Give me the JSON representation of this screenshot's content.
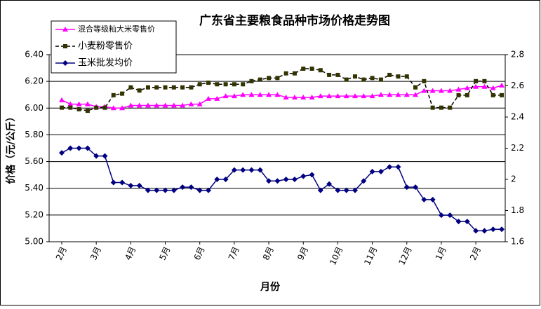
{
  "chart_data": {
    "type": "line",
    "title": "广东省主要粮食品种市场价格走势图",
    "xlabel": "月份",
    "ylabel": "价格（元/公斤）",
    "categories": [
      "2月",
      null,
      null,
      null,
      "3月",
      null,
      null,
      null,
      "4月",
      null,
      null,
      null,
      "5月",
      null,
      null,
      null,
      "6月",
      null,
      null,
      null,
      "7月",
      null,
      null,
      null,
      "8月",
      null,
      null,
      null,
      "9月",
      null,
      null,
      null,
      "10月",
      null,
      null,
      null,
      "11月",
      null,
      null,
      null,
      "12月",
      null,
      null,
      null,
      "1月",
      null,
      null,
      null,
      "2月",
      null,
      null,
      null
    ],
    "ylim": [
      5.0,
      6.4
    ],
    "yticks": [
      {
        "value": 5.0,
        "label": "5.00"
      },
      {
        "value": 5.2,
        "label": "5.20"
      },
      {
        "value": 5.4,
        "label": "5.40"
      },
      {
        "value": 5.6,
        "label": "5.60"
      },
      {
        "value": 5.8,
        "label": "5.80"
      },
      {
        "value": 6.0,
        "label": "6.00"
      },
      {
        "value": 6.2,
        "label": "6.20"
      },
      {
        "value": 6.4,
        "label": "6.40"
      }
    ],
    "y2lim": [
      1.6,
      2.8
    ],
    "y2ticks": [
      1.6,
      1.8,
      2,
      2.2,
      2.4,
      2.6,
      2.8
    ],
    "grid": true,
    "legend": "upper left",
    "series": [
      {
        "name": "混合等级籼大米零售价",
        "color": "#ff00ff",
        "marker": "triangle",
        "values": [
          6.06,
          6.03,
          6.03,
          6.03,
          6.01,
          6.01,
          6.0,
          6.0,
          6.02,
          6.02,
          6.02,
          6.02,
          6.02,
          6.02,
          6.02,
          6.03,
          6.03,
          6.07,
          6.07,
          6.09,
          6.09,
          6.1,
          6.1,
          6.1,
          6.1,
          6.1,
          6.08,
          6.08,
          6.08,
          6.08,
          6.09,
          6.09,
          6.09,
          6.09,
          6.09,
          6.09,
          6.09,
          6.1,
          6.1,
          6.1,
          6.1,
          6.1,
          6.13,
          6.13,
          6.13,
          6.13,
          6.14,
          6.15,
          6.16,
          6.16,
          6.15,
          6.17
        ]
      },
      {
        "name": "小麦粉零售价",
        "color": "#333300",
        "line_color": "#000000",
        "dashed": true,
        "marker": "square",
        "axis": "y2",
        "values": [
          2.46,
          2.46,
          2.45,
          2.44,
          2.46,
          2.46,
          2.54,
          2.55,
          2.59,
          2.57,
          2.59,
          2.59,
          2.59,
          2.59,
          2.59,
          2.59,
          2.61,
          2.62,
          2.61,
          2.61,
          2.61,
          2.61,
          2.63,
          2.64,
          2.65,
          2.65,
          2.68,
          2.68,
          2.71,
          2.71,
          2.7,
          2.67,
          2.67,
          2.64,
          2.66,
          2.64,
          2.65,
          2.64,
          2.67,
          2.66,
          2.66,
          2.59,
          2.63,
          2.46,
          2.46,
          2.46,
          2.54,
          2.54,
          2.63,
          2.63,
          2.54,
          2.54
        ]
      },
      {
        "name": "玉米批发均价",
        "color": "#000080",
        "marker": "diamond",
        "axis": "y2",
        "values": [
          2.17,
          2.2,
          2.2,
          2.2,
          2.15,
          2.15,
          1.98,
          1.98,
          1.96,
          1.96,
          1.93,
          1.93,
          1.93,
          1.93,
          1.95,
          1.95,
          1.93,
          1.93,
          2.0,
          2.0,
          2.06,
          2.06,
          2.06,
          2.06,
          1.99,
          1.99,
          2.0,
          2.0,
          2.02,
          2.03,
          1.93,
          1.97,
          1.93,
          1.93,
          1.93,
          1.99,
          2.05,
          2.05,
          2.08,
          2.08,
          1.95,
          1.95,
          1.87,
          1.87,
          1.77,
          1.77,
          1.73,
          1.73,
          1.67,
          1.67,
          1.68,
          1.68
        ]
      }
    ]
  }
}
